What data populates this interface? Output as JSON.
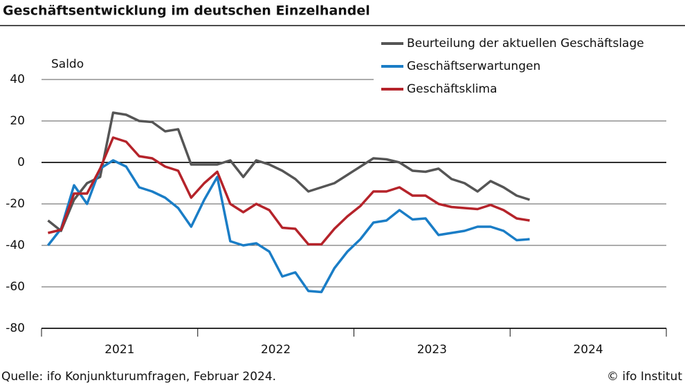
{
  "chart_data": {
    "type": "line",
    "title": "Geschäftsentwicklung im deutschen Einzelhandel",
    "y_label": "Saldo",
    "source": "Quelle: ifo Konjunkturumfragen, Februar 2024.",
    "credit": "© ifo Institut",
    "year_labels": [
      "2021",
      "2022",
      "2023",
      "2024"
    ],
    "categories": [
      null,
      null,
      null,
      null,
      null,
      null,
      null,
      null,
      null,
      null,
      null,
      null,
      null,
      null,
      null,
      null,
      null,
      null,
      null,
      null,
      null,
      null,
      null,
      null,
      null,
      null,
      null,
      null,
      null,
      null,
      null,
      null,
      null,
      null,
      null,
      null,
      null,
      null
    ],
    "ylim": [
      -80,
      40
    ],
    "yticks": [
      -80,
      -60,
      -40,
      -20,
      0,
      20,
      40
    ],
    "grid": true,
    "legend": "top-right",
    "series": [
      {
        "name": "Beurteilung der aktuellen Geschäftslage",
        "color": "#555555",
        "values": [
          -28,
          -33,
          -18,
          -10,
          -7,
          24,
          23,
          20,
          19.5,
          15,
          16,
          -1,
          -1,
          -1,
          1,
          -7,
          1,
          -1,
          -4,
          -8,
          -14,
          -12,
          -10,
          -6,
          -2,
          2,
          1.5,
          0,
          -4,
          -4.5,
          -3,
          -8,
          -10,
          -14,
          -9,
          -12,
          -16,
          -18
        ]
      },
      {
        "name": "Geschäftserwartungen",
        "color": "#1a7dc6",
        "values": [
          -40,
          -32,
          -11,
          -20,
          -3,
          1,
          -2,
          -12,
          -14,
          -17,
          -22,
          -31,
          -18,
          -7,
          -38,
          -40,
          -39,
          -43,
          -55,
          -53,
          -62,
          -62.5,
          -51,
          -43,
          -37,
          -29,
          -28,
          -23,
          -27.5,
          -27,
          -35,
          -34,
          -33,
          -31,
          -31,
          -33,
          -37.5,
          -37
        ]
      },
      {
        "name": "Geschäftsklima",
        "color": "#b5232a",
        "values": [
          -34,
          -32.5,
          -15,
          -15,
          -3,
          12,
          10,
          3,
          2,
          -2,
          -4,
          -17,
          -10,
          -4.5,
          -20,
          -24,
          -20,
          -23,
          -31.5,
          -32,
          -39.5,
          -39.5,
          -32,
          -26,
          -21,
          -14,
          -14,
          -12,
          -16,
          -16,
          -20,
          -21.5,
          -22,
          -22.5,
          -20.5,
          -23,
          -27,
          -28
        ]
      }
    ]
  }
}
